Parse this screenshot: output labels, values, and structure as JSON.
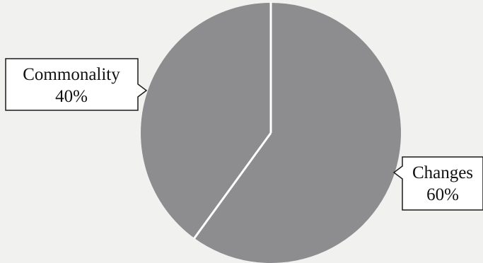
{
  "chart_data": {
    "type": "pie",
    "title": "",
    "slices": [
      {
        "name": "Changes",
        "value": 60,
        "value_label": "60%",
        "label_side": "right"
      },
      {
        "name": "Commonality",
        "value": 40,
        "value_label": "40%",
        "label_side": "left"
      }
    ],
    "start_angle": "12 o'clock",
    "direction": "clockwise",
    "slice_color": "#8d8d8f",
    "separator_color": "#ffffff",
    "callout_border_color": "#1a1a1a",
    "callout_fill_color": "#ffffff",
    "legend": "none",
    "labels": "callouts outside the pie with category name and percentage"
  }
}
